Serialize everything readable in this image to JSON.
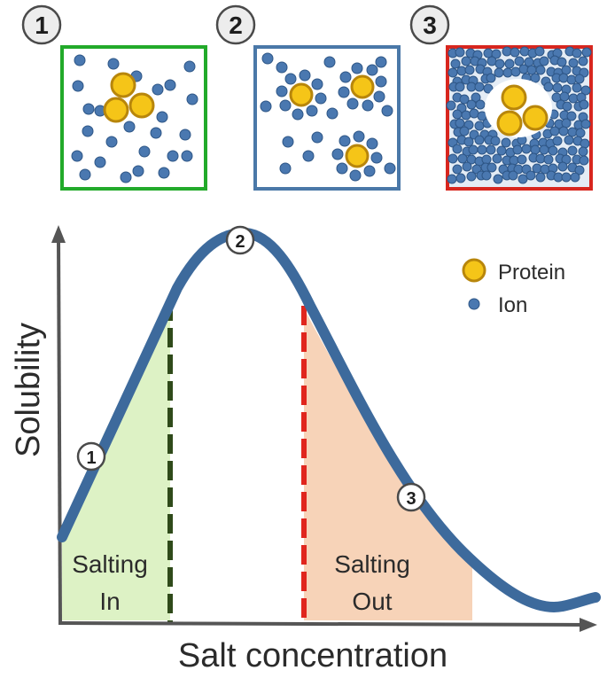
{
  "panels": [
    {
      "number": "1",
      "frame_color": "#22aa2a"
    },
    {
      "number": "2",
      "frame_color": "#4a78a8"
    },
    {
      "number": "3",
      "frame_color": "#d8261e"
    }
  ],
  "curve_markers": [
    "1",
    "2",
    "3"
  ],
  "legend": {
    "protein_label": "Protein",
    "ion_label": "Ion"
  },
  "axes": {
    "ylabel": "Solubility",
    "xlabel": "Salt concentration"
  },
  "regions": {
    "salting_in": {
      "line1": "Salting",
      "line2": "In"
    },
    "salting_out": {
      "line1": "Salting",
      "line2": "Out"
    }
  },
  "colors": {
    "curve": "#3d6a9c",
    "axis": "#555555",
    "protein_fill": "#f5c518",
    "protein_stroke": "#b8860b",
    "ion": "#4a78b0",
    "salting_in_fill": "#ddf2c5",
    "salting_out_fill": "#f7d3b8",
    "salting_in_line": "#2f4a1a",
    "salting_out_line": "#e0261e"
  }
}
